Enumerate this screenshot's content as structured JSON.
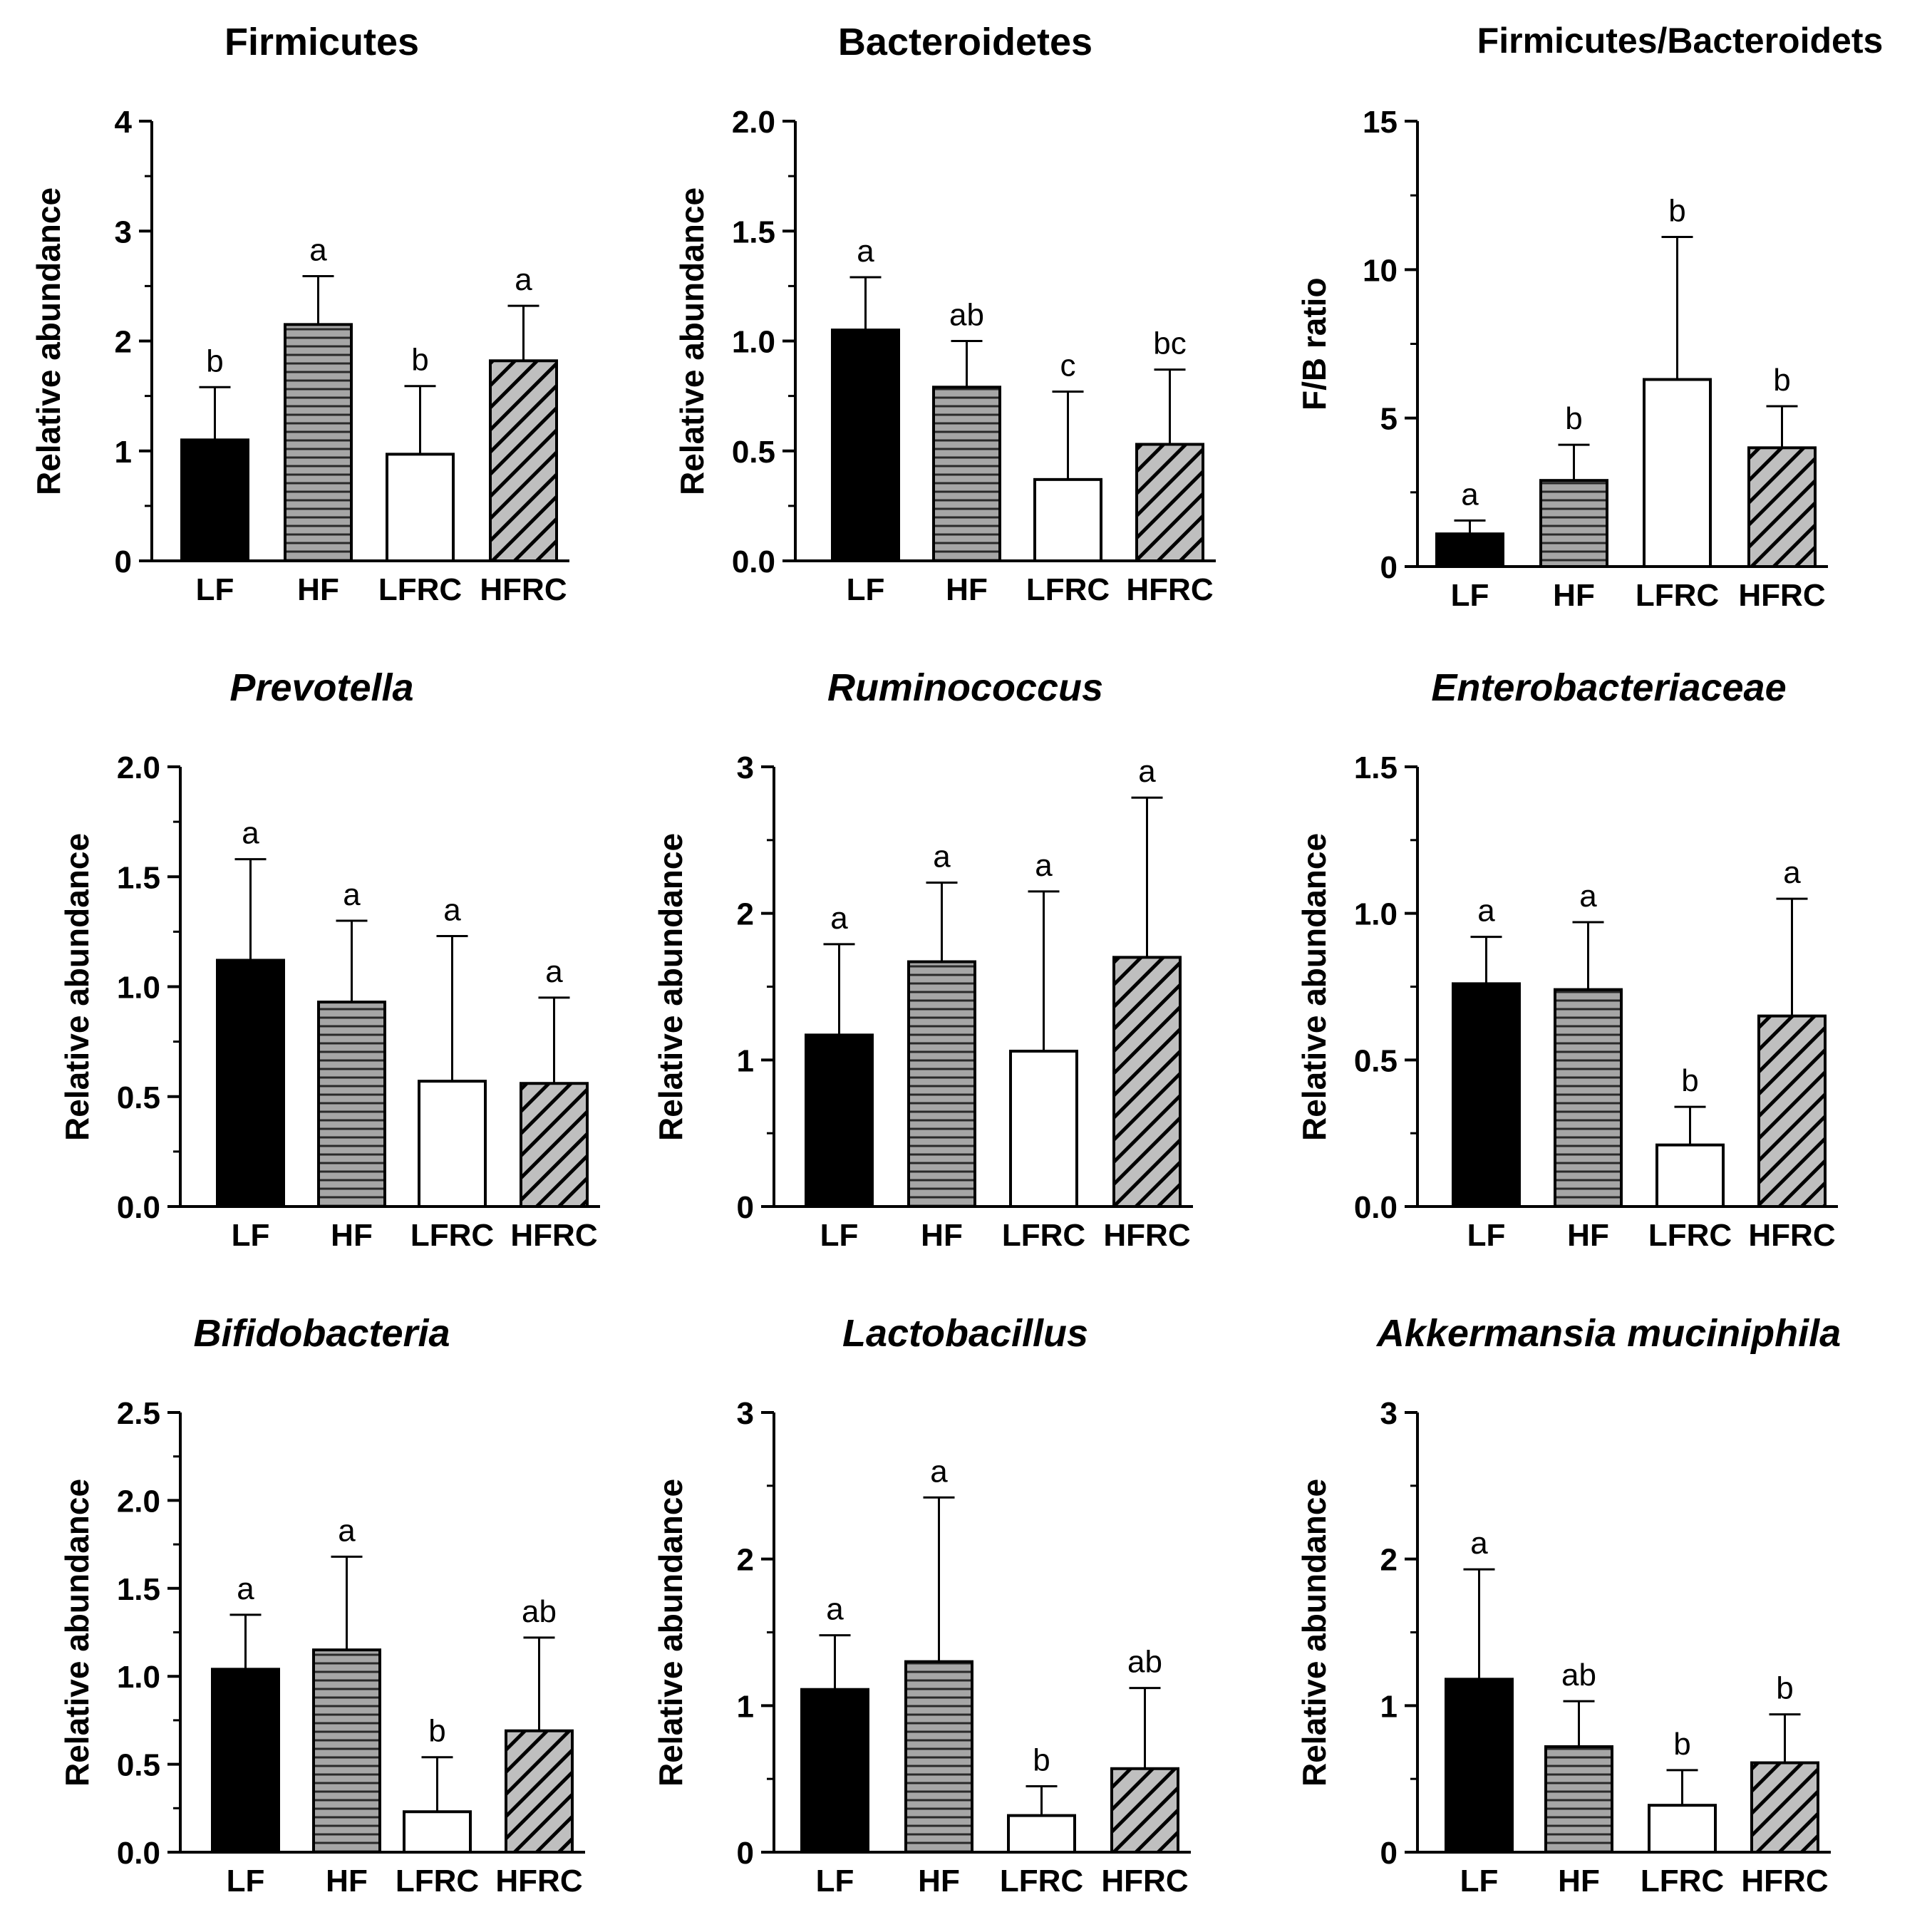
{
  "figure": {
    "groups": [
      "LF",
      "HF",
      "LFRC",
      "HFRC"
    ],
    "colors": {
      "LF": "#000000",
      "HF": "#a6a6a6",
      "LFRC": "#ffffff",
      "HFRC": "#bfbfbf"
    },
    "fill_patterns": {
      "LF": "solid-black",
      "HF": "horizontal-stripes",
      "LFRC": "white",
      "HFRC": "diagonal-stripes"
    }
  },
  "chart_data": [
    {
      "type": "bar",
      "title": "Firmicutes",
      "title_style": "normal",
      "ylabel": "Relative abundance",
      "categories": [
        "LF",
        "HF",
        "LFRC",
        "HFRC"
      ],
      "values": [
        1.1,
        2.15,
        0.97,
        1.82
      ],
      "error": [
        0.48,
        0.44,
        0.62,
        0.5
      ],
      "letters": [
        "b",
        "a",
        "b",
        "a"
      ],
      "ylim": [
        0,
        4
      ],
      "yticks": [
        "0",
        "1",
        "2",
        "3",
        "4"
      ],
      "tick_values": [
        0,
        1,
        2,
        3,
        4
      ]
    },
    {
      "type": "bar",
      "title": "Bacteroidetes",
      "title_style": "normal",
      "ylabel": "Relative abundance",
      "categories": [
        "LF",
        "HF",
        "LFRC",
        "HFRC"
      ],
      "values": [
        1.05,
        0.79,
        0.37,
        0.53
      ],
      "error": [
        0.24,
        0.21,
        0.4,
        0.34
      ],
      "letters": [
        "a",
        "ab",
        "c",
        "bc"
      ],
      "ylim": [
        0,
        2.0
      ],
      "yticks": [
        "0.0",
        "0.5",
        "1.0",
        "1.5",
        "2.0"
      ],
      "tick_values": [
        0,
        0.5,
        1.0,
        1.5,
        2.0
      ]
    },
    {
      "type": "bar",
      "title": "Firmicutes/Bacteroidets",
      "title_style": "normal",
      "ylabel": "F/B ratio",
      "categories": [
        "LF",
        "HF",
        "LFRC",
        "HFRC"
      ],
      "values": [
        1.1,
        2.9,
        6.3,
        4.0
      ],
      "error": [
        0.45,
        1.2,
        4.8,
        1.4
      ],
      "letters": [
        "a",
        "b",
        "b",
        "b"
      ],
      "ylim": [
        0,
        15
      ],
      "yticks": [
        "0",
        "5",
        "10",
        "15"
      ],
      "tick_values": [
        0,
        5,
        10,
        15
      ]
    },
    {
      "type": "bar",
      "title": "Prevotella",
      "title_style": "italic",
      "ylabel": "Relative abundance",
      "categories": [
        "LF",
        "HF",
        "LFRC",
        "HFRC"
      ],
      "values": [
        1.12,
        0.93,
        0.57,
        0.56
      ],
      "error": [
        0.46,
        0.37,
        0.66,
        0.39
      ],
      "letters": [
        "a",
        "a",
        "a",
        "a"
      ],
      "ylim": [
        0,
        2.0
      ],
      "yticks": [
        "0.0",
        "0.5",
        "1.0",
        "1.5",
        "2.0"
      ],
      "tick_values": [
        0,
        0.5,
        1.0,
        1.5,
        2.0
      ]
    },
    {
      "type": "bar",
      "title": "Ruminococcus",
      "title_style": "italic",
      "ylabel": "Relative abundance",
      "categories": [
        "LF",
        "HF",
        "LFRC",
        "HFRC"
      ],
      "values": [
        1.17,
        1.67,
        1.06,
        1.7
      ],
      "error": [
        0.62,
        0.54,
        1.09,
        1.09
      ],
      "letters": [
        "a",
        "a",
        "a",
        "a"
      ],
      "ylim": [
        0,
        3
      ],
      "yticks": [
        "0",
        "1",
        "2",
        "3"
      ],
      "tick_values": [
        0,
        1,
        2,
        3
      ]
    },
    {
      "type": "bar",
      "title": "Enterobacteriaceae",
      "title_style": "italic",
      "ylabel": "Relative abundance",
      "categories": [
        "LF",
        "HF",
        "LFRC",
        "HFRC"
      ],
      "values": [
        0.76,
        0.74,
        0.21,
        0.65
      ],
      "error": [
        0.16,
        0.23,
        0.13,
        0.4
      ],
      "letters": [
        "a",
        "a",
        "b",
        "a"
      ],
      "ylim": [
        0,
        1.5
      ],
      "yticks": [
        "0.0",
        "0.5",
        "1.0",
        "1.5"
      ],
      "tick_values": [
        0,
        0.5,
        1.0,
        1.5
      ]
    },
    {
      "type": "bar",
      "title": "Bifidobacteria",
      "title_style": "italic",
      "ylabel": "Relative abundance",
      "categories": [
        "LF",
        "HF",
        "LFRC",
        "HFRC"
      ],
      "values": [
        1.04,
        1.15,
        0.23,
        0.69
      ],
      "error": [
        0.31,
        0.53,
        0.31,
        0.53
      ],
      "letters": [
        "a",
        "a",
        "b",
        "ab"
      ],
      "ylim": [
        0,
        2.5
      ],
      "yticks": [
        "0.0",
        "0.5",
        "1.0",
        "1.5",
        "2.0",
        "2.5"
      ],
      "tick_values": [
        0,
        0.5,
        1.0,
        1.5,
        2.0,
        2.5
      ]
    },
    {
      "type": "bar",
      "title": "Lactobacillus",
      "title_style": "italic",
      "ylabel": "Relative abundance",
      "categories": [
        "LF",
        "HF",
        "LFRC",
        "HFRC"
      ],
      "values": [
        1.11,
        1.3,
        0.25,
        0.57
      ],
      "error": [
        0.37,
        1.12,
        0.2,
        0.55
      ],
      "letters": [
        "a",
        "a",
        "b",
        "ab"
      ],
      "ylim": [
        0,
        3
      ],
      "yticks": [
        "0",
        "1",
        "2",
        "3"
      ],
      "tick_values": [
        0,
        1,
        2,
        3
      ]
    },
    {
      "type": "bar",
      "title": "Akkermansia muciniphila",
      "title_style": "italic",
      "ylabel": "Relative abundance",
      "categories": [
        "LF",
        "HF",
        "LFRC",
        "HFRC"
      ],
      "values": [
        1.18,
        0.72,
        0.32,
        0.61
      ],
      "error": [
        0.75,
        0.31,
        0.24,
        0.33
      ],
      "letters": [
        "a",
        "ab",
        "b",
        "b"
      ],
      "ylim": [
        0,
        3
      ],
      "yticks": [
        "0",
        "1",
        "2",
        "3"
      ],
      "tick_values": [
        0,
        1,
        2,
        3
      ]
    }
  ]
}
